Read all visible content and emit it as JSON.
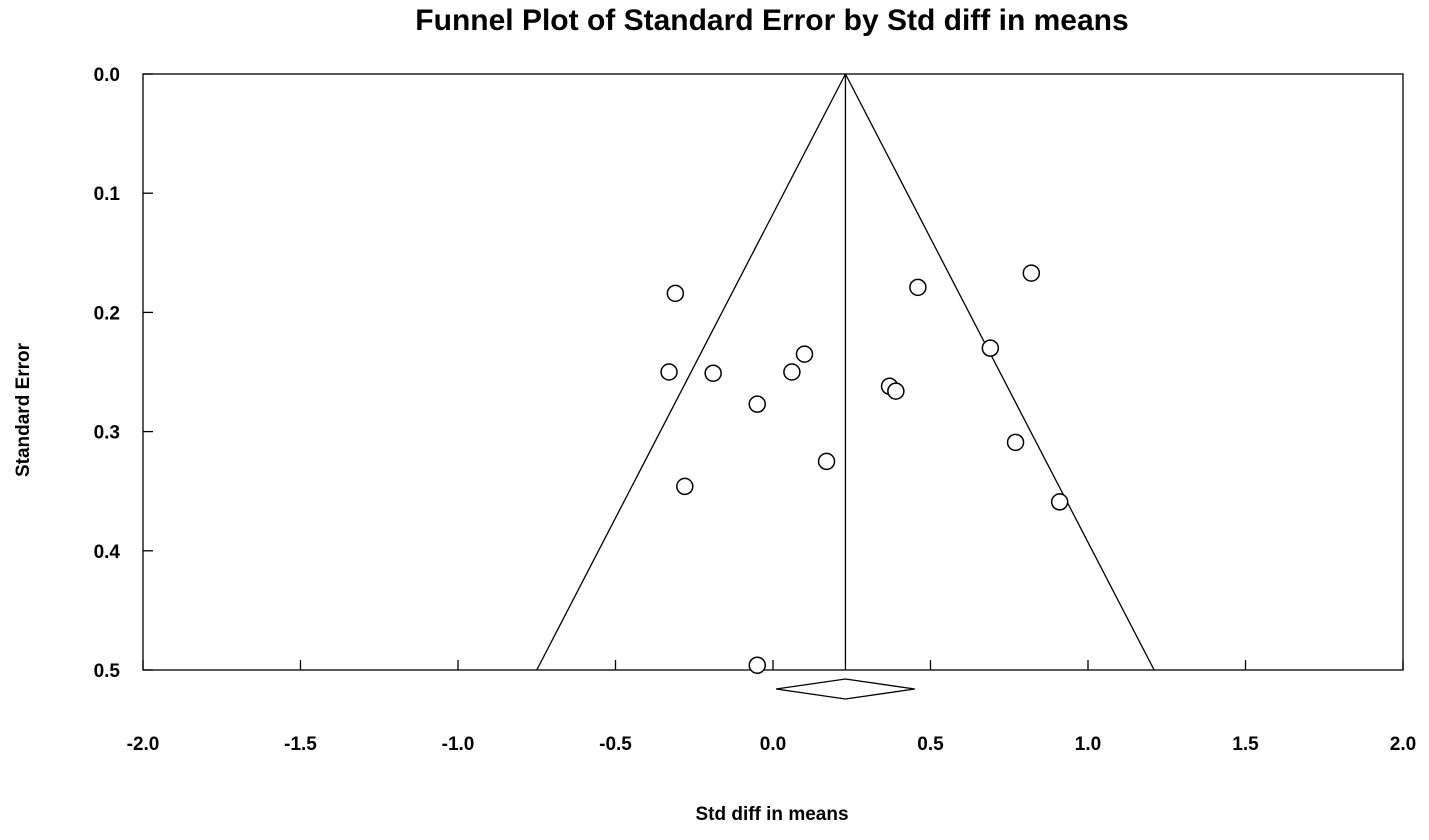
{
  "chart_data": {
    "type": "scatter",
    "title": "Funnel Plot of Standard Error by Std diff in means",
    "xlabel": "Std diff in means",
    "ylabel": "Standard Error",
    "xlim": [
      -2.0,
      2.0
    ],
    "ylim": [
      0.0,
      0.5
    ],
    "y_inverted": true,
    "x_ticks": [
      "-2.0",
      "-1.5",
      "-1.0",
      "-0.5",
      "0.0",
      "0.5",
      "1.0",
      "1.5",
      "2.0"
    ],
    "y_ticks": [
      "0.0",
      "0.1",
      "0.2",
      "0.3",
      "0.4",
      "0.5"
    ],
    "grid": false,
    "legend": "none",
    "pooled_estimate": 0.23,
    "funnel_limits": {
      "left_at_max_se": -0.75,
      "right_at_max_se": 1.21
    },
    "summary_diamond": {
      "lower": 0.01,
      "estimate": 0.23,
      "upper": 0.45
    },
    "points": [
      {
        "x": -0.31,
        "y": 0.184
      },
      {
        "x": -0.33,
        "y": 0.25
      },
      {
        "x": -0.19,
        "y": 0.251
      },
      {
        "x": -0.28,
        "y": 0.346
      },
      {
        "x": -0.05,
        "y": 0.277
      },
      {
        "x": 0.06,
        "y": 0.25
      },
      {
        "x": 0.1,
        "y": 0.235
      },
      {
        "x": 0.17,
        "y": 0.325
      },
      {
        "x": 0.37,
        "y": 0.262
      },
      {
        "x": 0.39,
        "y": 0.266
      },
      {
        "x": 0.46,
        "y": 0.179
      },
      {
        "x": 0.69,
        "y": 0.23
      },
      {
        "x": 0.77,
        "y": 0.309
      },
      {
        "x": 0.82,
        "y": 0.167
      },
      {
        "x": 0.91,
        "y": 0.359
      },
      {
        "x": -0.05,
        "y": 0.496
      }
    ]
  }
}
